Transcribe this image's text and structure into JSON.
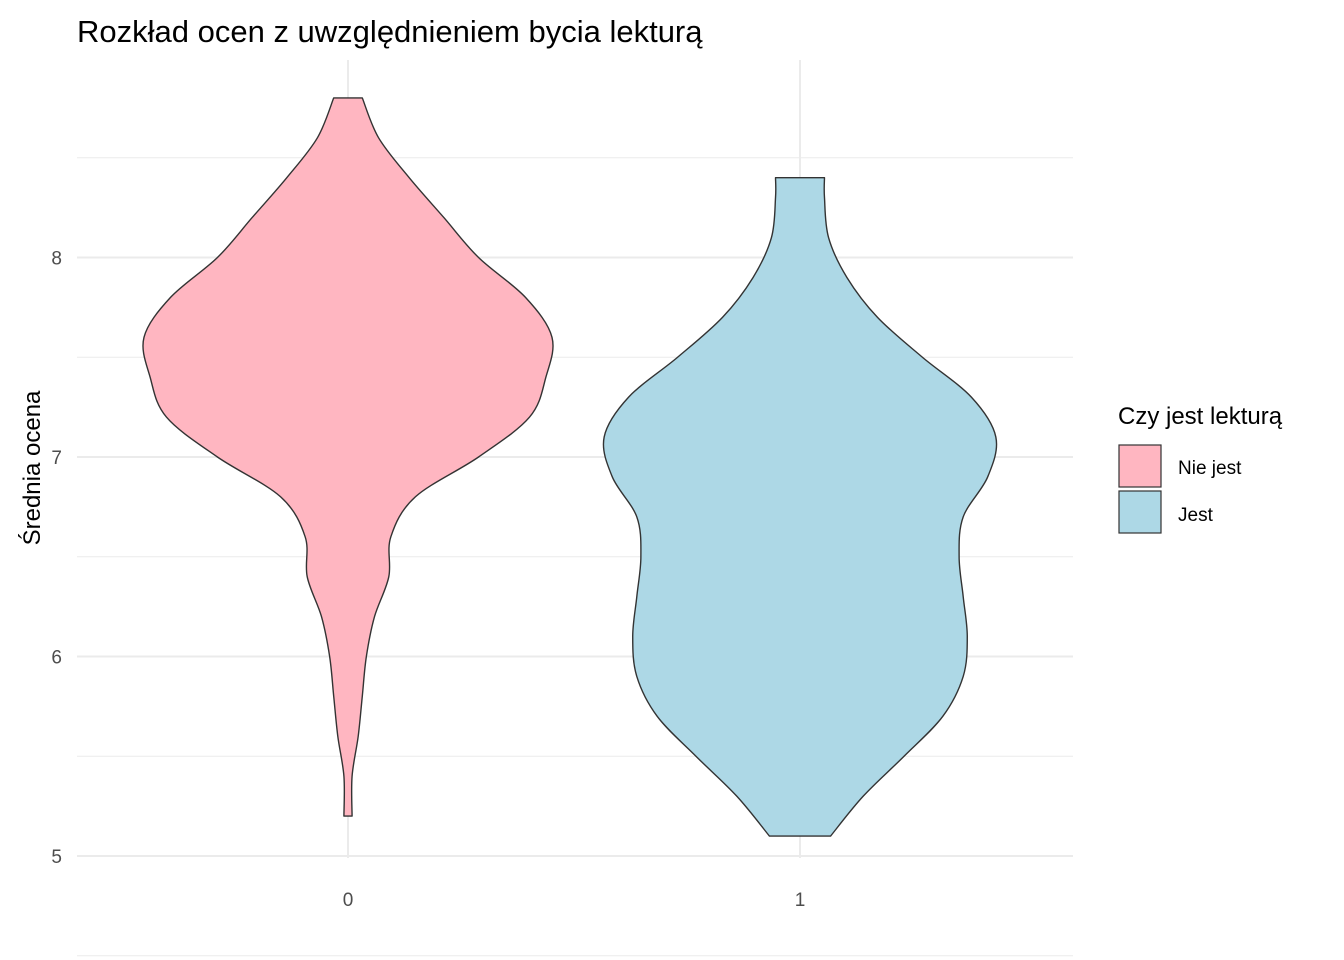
{
  "chart_data": {
    "type": "violin",
    "title": "Rozkład ocen z uwzględnieniem bycia lekturą",
    "xlabel": "",
    "ylabel": "Średnia ocena",
    "categories": [
      "0",
      "1"
    ],
    "y_ticks": [
      "5",
      "6",
      "7",
      "8"
    ],
    "ylim": [
      4.99,
      8.99
    ],
    "grid": true,
    "legend": {
      "title": "Czy jest lekturą",
      "position": "right",
      "entries": [
        {
          "label": "Nie jest",
          "color": "#FFB6C1"
        },
        {
          "label": "Jest",
          "color": "#ADD8E6"
        }
      ]
    },
    "series": [
      {
        "category": "0",
        "color": "#FFB6C1",
        "density_profile": [
          [
            5.2,
            0.02
          ],
          [
            5.4,
            0.02
          ],
          [
            5.6,
            0.05
          ],
          [
            5.8,
            0.07
          ],
          [
            6.0,
            0.09
          ],
          [
            6.2,
            0.13
          ],
          [
            6.4,
            0.2
          ],
          [
            6.6,
            0.21
          ],
          [
            6.8,
            0.33
          ],
          [
            7.0,
            0.64
          ],
          [
            7.2,
            0.89
          ],
          [
            7.4,
            0.97
          ],
          [
            7.6,
            1.0
          ],
          [
            7.8,
            0.87
          ],
          [
            8.0,
            0.64
          ],
          [
            8.2,
            0.47
          ],
          [
            8.4,
            0.3
          ],
          [
            8.6,
            0.15
          ],
          [
            8.8,
            0.07
          ]
        ]
      },
      {
        "category": "1",
        "color": "#ADD8E6",
        "density_profile": [
          [
            5.1,
            0.15
          ],
          [
            5.3,
            0.31
          ],
          [
            5.5,
            0.51
          ],
          [
            5.7,
            0.7
          ],
          [
            5.9,
            0.8
          ],
          [
            6.1,
            0.82
          ],
          [
            6.3,
            0.8
          ],
          [
            6.5,
            0.78
          ],
          [
            6.7,
            0.8
          ],
          [
            6.9,
            0.92
          ],
          [
            7.1,
            0.96
          ],
          [
            7.3,
            0.84
          ],
          [
            7.5,
            0.6
          ],
          [
            7.7,
            0.38
          ],
          [
            7.9,
            0.23
          ],
          [
            8.1,
            0.14
          ],
          [
            8.3,
            0.12
          ],
          [
            8.4,
            0.12
          ]
        ]
      }
    ]
  }
}
